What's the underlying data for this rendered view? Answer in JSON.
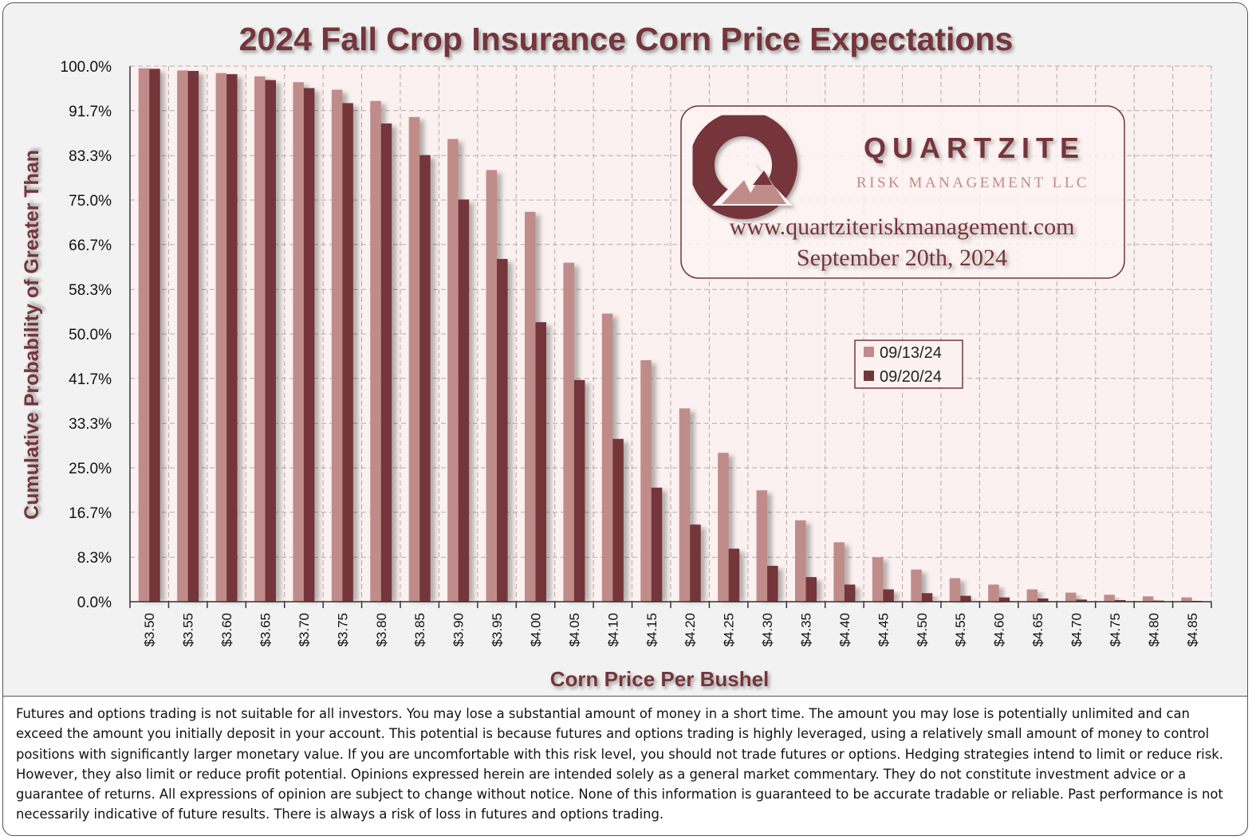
{
  "chart_data": {
    "type": "bar",
    "title": "2024 Fall Crop Insurance Corn Price Expectations",
    "xlabel": "Corn Price Per Bushel",
    "ylabel": "Cumulative Probability of Greater Than",
    "ylim": [
      0,
      100
    ],
    "yticks": [
      "100.0%",
      "91.7%",
      "83.3%",
      "75.0%",
      "66.7%",
      "58.3%",
      "50.0%",
      "41.7%",
      "33.3%",
      "25.0%",
      "16.7%",
      "8.3%",
      "0.0%"
    ],
    "ytick_values": [
      100,
      91.7,
      83.3,
      75,
      66.7,
      58.3,
      50,
      41.7,
      33.3,
      25,
      16.7,
      8.3,
      0
    ],
    "categories": [
      "$3.50",
      "$3.55",
      "$3.60",
      "$3.65",
      "$3.70",
      "$3.75",
      "$3.80",
      "$3.85",
      "$3.90",
      "$3.95",
      "$4.00",
      "$4.05",
      "$4.10",
      "$4.15",
      "$4.20",
      "$4.25",
      "$4.30",
      "$4.35",
      "$4.40",
      "$4.45",
      "$4.50",
      "$4.55",
      "$4.60",
      "$4.65",
      "$4.70",
      "$4.75",
      "$4.80",
      "$4.85"
    ],
    "series": [
      {
        "name": "09/13/24",
        "color": "#c08c89",
        "values": [
          99.6,
          99.2,
          98.7,
          98.1,
          97.0,
          95.6,
          93.5,
          90.5,
          86.4,
          80.6,
          72.8,
          63.3,
          53.8,
          45.1,
          36.1,
          27.8,
          20.8,
          15.2,
          11.1,
          8.3,
          6.0,
          4.4,
          3.2,
          2.3,
          1.7,
          1.3,
          1.0,
          0.8
        ]
      },
      {
        "name": "09/20/24",
        "color": "#74363a",
        "values": [
          99.5,
          99.1,
          98.5,
          97.4,
          95.9,
          93.1,
          89.3,
          83.4,
          75.1,
          64.0,
          52.2,
          41.4,
          30.4,
          21.3,
          14.4,
          9.9,
          6.7,
          4.6,
          3.2,
          2.3,
          1.6,
          1.1,
          0.8,
          0.6,
          0.4,
          0.3,
          0.2,
          0.15
        ]
      }
    ],
    "legend": "center-right",
    "grid": true
  },
  "logo": {
    "name": "QUARTZITE",
    "subtitle": "RISK MANAGEMENT LLC",
    "website": "www.quartziteriskmanagement.com",
    "date": "September 20th, 2024"
  },
  "disclaimer": "Futures and options trading is not suitable for all investors. You may lose a substantial amount of money in a short time. The amount you may lose is potentially unlimited and can exceed the amount you initially deposit in your account. This potential is because futures and options trading is highly leveraged, using a relatively small amount of money to control positions with significantly larger monetary value. If you are uncomfortable with this risk level, you should not trade futures or options. Hedging strategies intend to limit or reduce risk. However, they also limit or reduce profit potential. Opinions expressed herein are intended solely as a general market commentary. They do not constitute investment advice or a guarantee of returns. All expressions of opinion are subject to change without notice. None of this information is guaranteed to be accurate tradable or reliable. Past performance is not necessarily indicative of future results. There is always a risk of loss in futures and options trading.",
  "colors": {
    "accent": "#74363a",
    "light_series": "#c08c89",
    "plot_bg": "#fbf1f0",
    "grid": "#b8a9a8"
  }
}
